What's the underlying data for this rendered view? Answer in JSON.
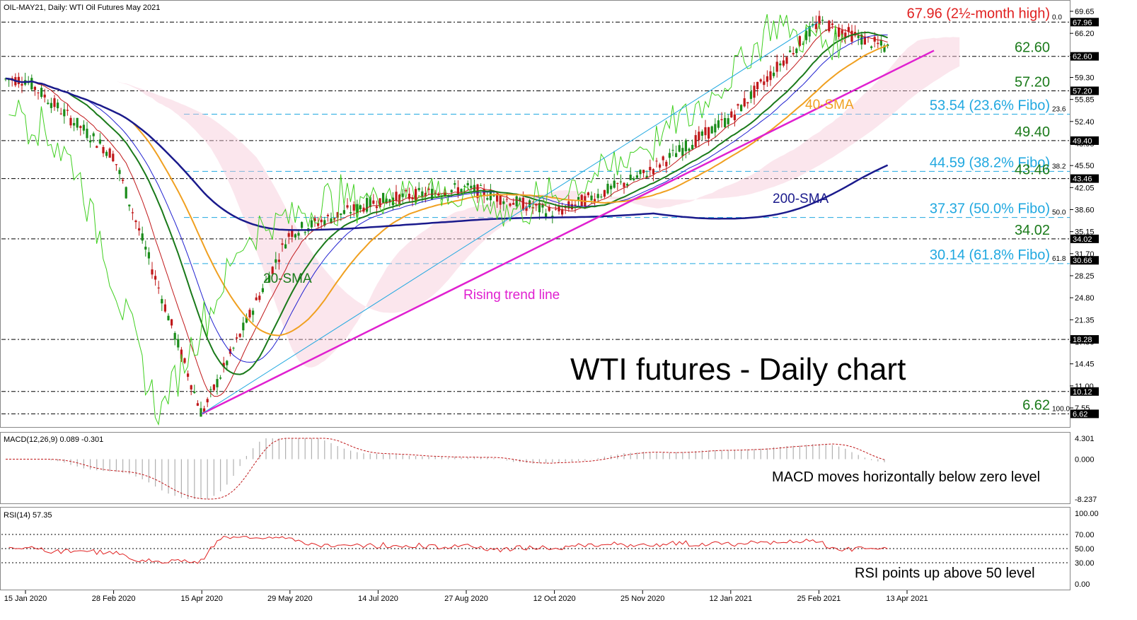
{
  "header": {
    "symbol_label": "OIL-MAY21, Daily:",
    "description": "WTI Oil Futures May 2021"
  },
  "chart_data": [
    {
      "type": "line",
      "title": "WTI futures - Daily chart",
      "x_tick_labels": [
        "15 Jan 2020",
        "28 Feb 2020",
        "15 Apr 2020",
        "29 May 2020",
        "14 Jul 2020",
        "27 Aug 2020",
        "12 Oct 2020",
        "25 Nov 2020",
        "12 Jan 2021",
        "25 Feb 2021",
        "13 Apr 2021"
      ],
      "y_tick_labels": [
        "69.65",
        "66.20",
        "62.75",
        "59.30",
        "55.85",
        "52.40",
        "48.95",
        "45.50",
        "42.05",
        "38.60",
        "35.15",
        "31.70",
        "28.25",
        "24.80",
        "21.35",
        "17.90",
        "14.45",
        "11.00",
        "7.55"
      ],
      "y_range": [
        6.62,
        69.65
      ],
      "price_path": [
        [
          "15 Jan 2020",
          59
        ],
        [
          "28 Feb 2020",
          47
        ],
        [
          "15 Apr 2020",
          6.62
        ],
        [
          "29 May 2020",
          35
        ],
        [
          "14 Jul 2020",
          40
        ],
        [
          "27 Aug 2020",
          42
        ],
        [
          "12 Oct 2020",
          38
        ],
        [
          "25 Nov 2020",
          44
        ],
        [
          "12 Jan 2021",
          53
        ],
        [
          "25 Feb 2021",
          67.96
        ],
        [
          "13 Apr 2021",
          62.6
        ]
      ],
      "series": [
        {
          "name": "20-SMA",
          "color": "#1a7a1a"
        },
        {
          "name": "40-SMA",
          "color": "#f0a020"
        },
        {
          "name": "200-SMA",
          "color": "#1a1a8c"
        },
        {
          "name": "Rising trend line",
          "color": "#e020d0"
        }
      ],
      "price_badges": [
        "67.96",
        "62.60",
        "57.20",
        "49.40",
        "43.46",
        "34.02",
        "30.66",
        "18.28",
        "10.12",
        "6.62"
      ],
      "horizontal_levels": [
        {
          "value": 67.96,
          "label": "67.96 (2½-month high)",
          "color": "#e02020",
          "fibo_tag": "0.0"
        },
        {
          "value": 62.6,
          "label": "62.60",
          "color": "#1a7a1a"
        },
        {
          "value": 57.2,
          "label": "57.20",
          "color": "#1a7a1a"
        },
        {
          "value": 53.54,
          "label": "53.54 (23.6% Fibo)",
          "color": "#20a8e0",
          "fibo_tag": "23.6"
        },
        {
          "value": 49.4,
          "label": "49.40",
          "color": "#1a7a1a"
        },
        {
          "value": 44.59,
          "label": "44.59 (38.2% Fibo)",
          "color": "#20a8e0",
          "fibo_tag": "38.2"
        },
        {
          "value": 43.46,
          "label": "43.46",
          "color": "#1a7a1a"
        },
        {
          "value": 37.37,
          "label": "37.37 (50.0% Fibo)",
          "color": "#20a8e0",
          "fibo_tag": "50.0"
        },
        {
          "value": 34.02,
          "label": "34.02",
          "color": "#1a7a1a"
        },
        {
          "value": 30.14,
          "label": "30.14 (61.8% Fibo)",
          "color": "#20a8e0",
          "fibo_tag": "61.8"
        },
        {
          "value": 18.28
        },
        {
          "value": 10.12
        },
        {
          "value": 6.62,
          "label": "6.62",
          "color": "#1a7a1a",
          "fibo_tag": "100.0"
        }
      ]
    },
    {
      "type": "bar",
      "title": "MACD(12,26,9) 0.089 -0.301",
      "y_tick_labels": [
        "4.301",
        "0.000",
        "-8.237"
      ],
      "y_range": [
        -8.237,
        4.301
      ],
      "annotation": "MACD moves horizontally below zero level"
    },
    {
      "type": "line",
      "title": "RSI(14) 57.35",
      "y_tick_labels": [
        "100.00",
        "70.00",
        "50.00",
        "30.00",
        "0.00"
      ],
      "y_range": [
        0,
        100
      ],
      "color": "#e02020",
      "annotation": "RSI points up above 50 level"
    }
  ]
}
